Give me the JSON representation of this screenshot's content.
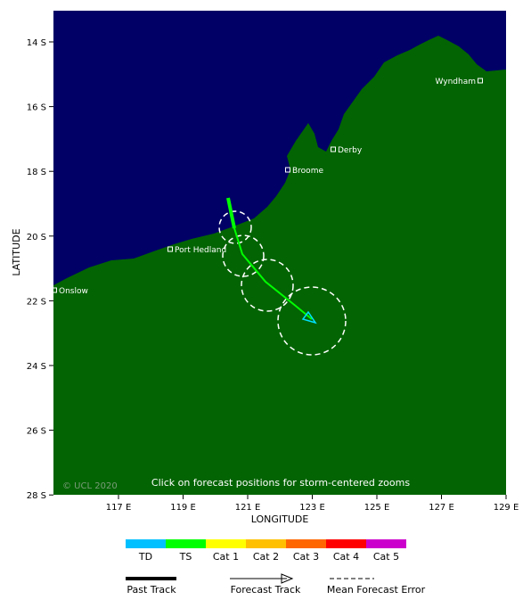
{
  "map": {
    "x_label": "LONGITUDE",
    "y_label": "LATITUDE",
    "xticks": [
      "117 E",
      "119 E",
      "121 E",
      "123 E",
      "125 E",
      "127 E",
      "129 E"
    ],
    "yticks": [
      "14 S",
      "16 S",
      "18 S",
      "20 S",
      "22 S",
      "24 S",
      "26 S",
      "28 S"
    ],
    "places": [
      "Wyndham",
      "Derby",
      "Broome",
      "Port Hedland",
      "Onslow"
    ],
    "copyright": "© UCL 2020",
    "note": "Click on forecast positions for storm-centered zooms"
  },
  "legend": {
    "categories": [
      "TD",
      "TS",
      "Cat 1",
      "Cat 2",
      "Cat 3",
      "Cat 4",
      "Cat 5"
    ],
    "tracks": [
      "Past Track",
      "Forecast Track",
      "Mean Forecast Error"
    ]
  }
}
